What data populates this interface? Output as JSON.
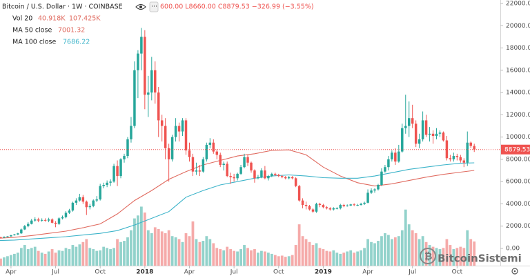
{
  "chart_data": {
    "type": "candlestick",
    "title": "Bitcoin / U.S. Dollar · 1W · COINBASE",
    "ohlc_text": "600.00 L8660.00 C8879.53 −326.99 (−3.55%)",
    "volume_legend": {
      "name": "Vol 20",
      "values": [
        "40.918K",
        "107.425K"
      ]
    },
    "watermark": "BitcoinSistemi",
    "up_color": "#26a69a",
    "down_color": "#ef5350",
    "volume_up_color": "#92d2cb",
    "volume_down_color": "#f5aaa9",
    "grid": false,
    "xlim": [
      0.8,
      146.6
    ],
    "xticks": [
      {
        "value": 4,
        "label": "Apr"
      },
      {
        "value": 17,
        "label": "Jul"
      },
      {
        "value": 30,
        "label": "Oct"
      },
      {
        "value": 43,
        "label": "2018"
      },
      {
        "value": 56,
        "label": "Apr"
      },
      {
        "value": 69,
        "label": "Jul"
      },
      {
        "value": 82,
        "label": "Oct"
      },
      {
        "value": 95,
        "label": "2019"
      },
      {
        "value": 108,
        "label": "Apr"
      },
      {
        "value": 121,
        "label": "Jul"
      },
      {
        "value": 134,
        "label": "Oct"
      }
    ],
    "ylim": [
      -1550,
      22310
    ],
    "yticks": [
      {
        "value": 0,
        "label": "0.00"
      },
      {
        "value": 2000,
        "label": "2000.00"
      },
      {
        "value": 4000,
        "label": "4000.00"
      },
      {
        "value": 6000,
        "label": "6000.00"
      },
      {
        "value": 8000,
        "label": "8000.00"
      },
      {
        "value": 10000,
        "label": "10000.00"
      },
      {
        "value": 12000,
        "label": "12000.00"
      },
      {
        "value": 14000,
        "label": "14000.00"
      },
      {
        "value": 16000,
        "label": "16000.00"
      },
      {
        "value": 18000,
        "label": "18000.00"
      },
      {
        "value": 20000,
        "label": "20000.00"
      },
      {
        "value": 22000,
        "label": "22000.00"
      }
    ],
    "volume_ylim": [
      0,
      450
    ],
    "open": [
      1050,
      1000,
      960,
      1040,
      1080,
      1180,
      1250,
      1350,
      1700,
      2000,
      2200,
      2500,
      2600,
      2500,
      2550,
      2500,
      2600,
      2300,
      2200,
      2700,
      2800,
      3200,
      3400,
      4100,
      4300,
      4600,
      4200,
      3700,
      3800,
      4300,
      4400,
      5600,
      5700,
      5900,
      6000,
      7400,
      6500,
      8000,
      8300,
      9800,
      11000,
      16000,
      17500,
      19000,
      13800,
      14000,
      16000,
      14000,
      11500,
      11000,
      9000,
      8000,
      10000,
      11000,
      10500,
      11500,
      8800,
      8200,
      6900,
      7000,
      6900,
      8000,
      9300,
      9500,
      8700,
      8400,
      7500,
      7600,
      6500,
      6400,
      6300,
      6700,
      7300,
      8200,
      7700,
      7000,
      6300,
      6400,
      7000,
      6300,
      6500,
      6700,
      6600,
      6500,
      6400,
      6300,
      6400,
      6300,
      5600,
      4300,
      3900,
      3800,
      3500,
      3300,
      4000,
      3900,
      3700,
      3600,
      3500,
      3600,
      3600,
      3900,
      3800,
      3850,
      3950,
      3900,
      3900,
      4000,
      4100,
      5000,
      5200,
      5300,
      5700,
      6900,
      7300,
      8000,
      8600,
      7800,
      8700,
      10800,
      11000,
      11700,
      11200,
      9400,
      9800,
      11500,
      10200,
      10300,
      10100,
      10300,
      10400,
      9700,
      8100,
      8000,
      8300,
      8200,
      7900,
      7700,
      9500,
      9200
    ],
    "high": [
      1100,
      1050,
      1080,
      1120,
      1220,
      1300,
      1400,
      1780,
      2100,
      2350,
      2650,
      2800,
      2750,
      2700,
      2700,
      2750,
      2700,
      2450,
      2800,
      2950,
      3350,
      3550,
      4200,
      4500,
      4900,
      4800,
      4300,
      4000,
      4400,
      4700,
      5800,
      5900,
      6100,
      6200,
      7600,
      7900,
      8100,
      8500,
      10000,
      11800,
      16800,
      17800,
      19800,
      19600,
      15500,
      17200,
      16800,
      14500,
      12000,
      11700,
      9400,
      10200,
      11700,
      11300,
      11700,
      11700,
      9500,
      8500,
      7700,
      7500,
      8200,
      9500,
      9900,
      9800,
      8900,
      8600,
      7800,
      7800,
      6800,
      6700,
      6800,
      7500,
      8500,
      8400,
      7800,
      7100,
      6600,
      7200,
      7400,
      6600,
      6800,
      6800,
      6700,
      6600,
      6500,
      6500,
      6500,
      6400,
      5700,
      4500,
      4200,
      3900,
      3600,
      4100,
      4100,
      4000,
      3800,
      3700,
      3700,
      3700,
      4000,
      4000,
      3950,
      4000,
      4050,
      4000,
      4100,
      4200,
      5300,
      5400,
      5400,
      5800,
      7200,
      7500,
      8300,
      8800,
      9000,
      9300,
      11200,
      13800,
      13200,
      12900,
      11500,
      10300,
      12300,
      12000,
      10900,
      10600,
      10800,
      10600,
      10500,
      10100,
      8400,
      8600,
      8500,
      8400,
      8100,
      10500,
      9600,
      9400
    ],
    "low": [
      950,
      900,
      930,
      1000,
      1050,
      1150,
      1200,
      1300,
      1650,
      1900,
      2150,
      2400,
      2350,
      2400,
      2400,
      2350,
      2250,
      1900,
      2100,
      2600,
      2700,
      3100,
      3300,
      3900,
      4200,
      4000,
      3000,
      3500,
      3700,
      4150,
      4300,
      5400,
      5500,
      5600,
      5900,
      5600,
      6300,
      7700,
      8100,
      9500,
      10800,
      13500,
      16000,
      12500,
      11800,
      13300,
      13000,
      10000,
      9600,
      8000,
      6000,
      7800,
      9600,
      9600,
      10100,
      8400,
      7800,
      6500,
      6600,
      6500,
      6800,
      7800,
      9000,
      8500,
      8000,
      7300,
      7000,
      6400,
      5800,
      6000,
      6100,
      6600,
      7200,
      7400,
      6800,
      5900,
      6200,
      6300,
      6200,
      6100,
      6400,
      6500,
      6400,
      6300,
      6200,
      6200,
      6200,
      5500,
      4200,
      3600,
      3500,
      3400,
      3200,
      3200,
      3700,
      3600,
      3500,
      3400,
      3400,
      3500,
      3500,
      3700,
      3750,
      3800,
      3800,
      3800,
      3850,
      3900,
      4050,
      4900,
      5000,
      5200,
      5600,
      6800,
      7000,
      7800,
      7500,
      7700,
      8600,
      10300,
      10000,
      10800,
      9100,
      9000,
      9600,
      10000,
      9600,
      9400,
      9800,
      10000,
      9600,
      7900,
      7800,
      7800,
      7900,
      7700,
      7300,
      7400,
      9000,
      8660
    ],
    "close": [
      1000,
      960,
      1040,
      1080,
      1180,
      1250,
      1350,
      1700,
      2000,
      2200,
      2500,
      2600,
      2500,
      2550,
      2500,
      2600,
      2300,
      2200,
      2700,
      2800,
      3200,
      3400,
      4100,
      4300,
      4600,
      4200,
      3700,
      3800,
      4300,
      4400,
      5600,
      5700,
      5900,
      6000,
      7400,
      6500,
      8000,
      8300,
      9800,
      11000,
      16000,
      17500,
      19000,
      13800,
      14000,
      16000,
      14000,
      11500,
      11000,
      9000,
      8000,
      10000,
      11000,
      10500,
      11500,
      8800,
      8200,
      6900,
      7000,
      6900,
      8000,
      9300,
      9500,
      8700,
      8400,
      7500,
      7600,
      6500,
      6400,
      6300,
      6700,
      7300,
      8200,
      7700,
      7000,
      6300,
      6400,
      7000,
      6300,
      6500,
      6700,
      6600,
      6500,
      6400,
      6300,
      6400,
      6300,
      5600,
      4300,
      3900,
      3800,
      3500,
      3300,
      4000,
      3900,
      3700,
      3600,
      3500,
      3600,
      3600,
      3900,
      3800,
      3850,
      3950,
      3900,
      3900,
      4000,
      4100,
      5000,
      5200,
      5300,
      5700,
      6900,
      7300,
      8000,
      8600,
      7800,
      8700,
      10800,
      11000,
      11700,
      11200,
      9400,
      9800,
      11500,
      10200,
      10300,
      10100,
      10300,
      10400,
      9700,
      8100,
      8000,
      8300,
      8200,
      7900,
      7700,
      9500,
      9200,
      8879.53
    ],
    "volume": [
      15,
      12,
      14,
      16,
      18,
      20,
      22,
      30,
      35,
      28,
      30,
      32,
      25,
      22,
      20,
      24,
      28,
      22,
      26,
      25,
      30,
      28,
      35,
      32,
      36,
      40,
      45,
      30,
      28,
      25,
      26,
      32,
      30,
      28,
      30,
      45,
      40,
      42,
      48,
      60,
      80,
      85,
      100,
      90,
      60,
      55,
      65,
      62,
      58,
      55,
      60,
      50,
      48,
      45,
      40,
      55,
      50,
      75,
      45,
      40,
      42,
      50,
      45,
      38,
      30,
      28,
      26,
      32,
      28,
      25,
      24,
      28,
      35,
      30,
      26,
      28,
      22,
      25,
      24,
      22,
      20,
      18,
      16,
      17,
      15,
      16,
      18,
      35,
      70,
      50,
      45,
      40,
      35,
      38,
      30,
      28,
      25,
      24,
      26,
      22,
      20,
      22,
      24,
      26,
      22,
      24,
      26,
      30,
      45,
      40,
      38,
      42,
      50,
      55,
      52,
      45,
      48,
      50,
      60,
      95,
      70,
      60,
      55,
      45,
      50,
      40,
      35,
      32,
      30,
      28,
      30,
      45,
      35,
      28,
      30,
      32,
      30,
      60,
      45,
      40.918
    ],
    "ma": [
      {
        "name": "MA 50 close",
        "color": "#e06a5f",
        "x": [
          0,
          5,
          10,
          15,
          20,
          25,
          30,
          35,
          40,
          45,
          50,
          55,
          60,
          65,
          70,
          75,
          80,
          85,
          90,
          95,
          100,
          105,
          110,
          115,
          120,
          125,
          130,
          135,
          139
        ],
        "values": [
          900,
          1000,
          1150,
          1350,
          1550,
          1850,
          2200,
          3100,
          4300,
          5200,
          6200,
          6900,
          7500,
          7900,
          8300,
          8500,
          8800,
          8850,
          8400,
          7300,
          6500,
          5900,
          5600,
          5800,
          6100,
          6400,
          6650,
          6850,
          7001.32
        ]
      },
      {
        "name": "MA 100 close",
        "color": "#3bb3c9",
        "x": [
          0,
          5,
          10,
          15,
          20,
          25,
          30,
          35,
          40,
          45,
          50,
          55,
          60,
          65,
          70,
          75,
          80,
          85,
          90,
          95,
          100,
          105,
          110,
          115,
          120,
          125,
          130,
          135,
          139
        ],
        "values": [
          700,
          750,
          850,
          950,
          1050,
          1200,
          1350,
          1600,
          2100,
          2700,
          3300,
          4600,
          5200,
          5700,
          6000,
          6300,
          6500,
          6600,
          6500,
          6350,
          6300,
          6300,
          6500,
          6800,
          7100,
          7300,
          7500,
          7650,
          7686.22
        ]
      }
    ]
  }
}
